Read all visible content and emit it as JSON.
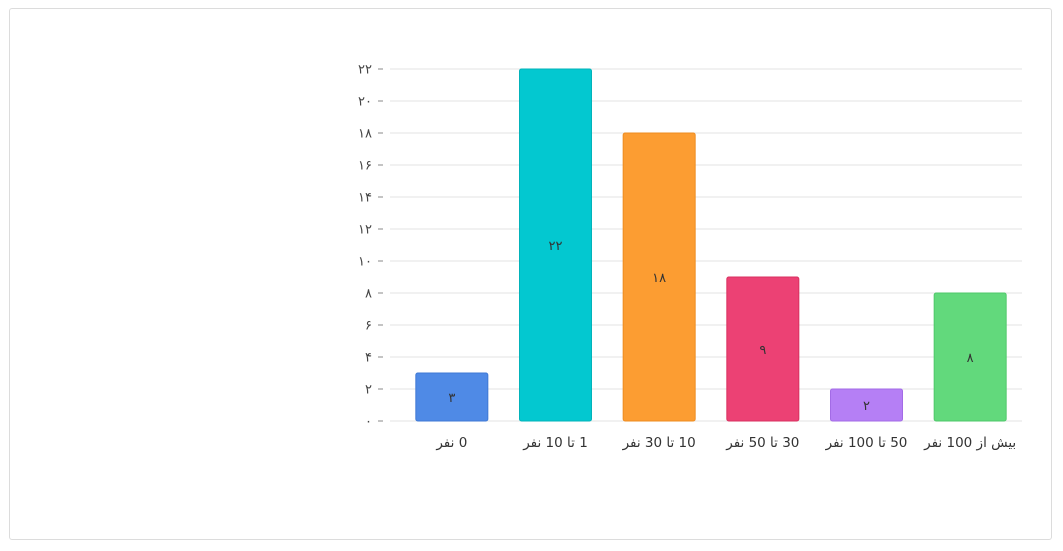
{
  "chart_data": {
    "type": "bar",
    "categories": [
      "0 نفر",
      "1 تا 10 نفر",
      "10 تا 30 نفر",
      "30 تا 50 نفر",
      "50 تا 100 نفر",
      "بیش از 100 نفر"
    ],
    "values": [
      3,
      22,
      18,
      9,
      2,
      8
    ],
    "data_labels": [
      "۳",
      "۲۲",
      "۱۸",
      "۹",
      "۲",
      "۸"
    ],
    "colors": [
      "#4f8ae6",
      "#03c8d0",
      "#fc9d32",
      "#ec4174",
      "#b57ff5",
      "#62d97c"
    ],
    "border_colors": [
      "#3f78d4",
      "#02b3ba",
      "#ee8c20",
      "#d8305f",
      "#a36be6",
      "#4fc86a"
    ],
    "yticks": [
      0,
      2,
      4,
      6,
      8,
      10,
      12,
      14,
      16,
      18,
      20,
      22
    ],
    "ytick_labels": [
      "۰",
      "۲",
      "۴",
      "۶",
      "۸",
      "۱۰",
      "۱۲",
      "۱۴",
      "۱۶",
      "۱۸",
      "۲۰",
      "۲۲"
    ],
    "ylim": [
      0,
      22
    ],
    "grid": true,
    "title": "",
    "xlabel": "",
    "ylabel": ""
  }
}
